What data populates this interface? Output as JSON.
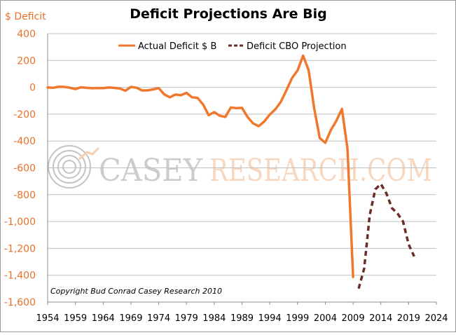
{
  "chart_data": {
    "type": "line",
    "title": "Deficit Projections Are Big",
    "ylabel": "$ Deficit",
    "xlabel": "",
    "xlim": [
      1954,
      2024
    ],
    "ylim": [
      -1600,
      400
    ],
    "x_ticks": [
      "1954",
      "1959",
      "1964",
      "1969",
      "1974",
      "1979",
      "1984",
      "1989",
      "1994",
      "1999",
      "2004",
      "2009",
      "2014",
      "2019",
      "2024"
    ],
    "x_tick_values": [
      1954,
      1959,
      1964,
      1969,
      1974,
      1979,
      1984,
      1989,
      1994,
      1999,
      2004,
      2009,
      2014,
      2019,
      2024
    ],
    "y_ticks": [
      "400",
      "200",
      "0",
      "-200",
      "-400",
      "-600",
      "-800",
      "-1,000",
      "-1,200",
      "-1,400",
      "-1,600"
    ],
    "y_tick_values": [
      400,
      200,
      0,
      -200,
      -400,
      -600,
      -800,
      -1000,
      -1200,
      -1400,
      -1600
    ],
    "grid": "horizontal",
    "legend_position": "top",
    "series": [
      {
        "name": "Actual Deficit $ B",
        "style": "solid",
        "color": "#f0782d",
        "x": [
          1954,
          1955,
          1956,
          1957,
          1958,
          1959,
          1960,
          1961,
          1962,
          1963,
          1964,
          1965,
          1966,
          1967,
          1968,
          1969,
          1970,
          1971,
          1972,
          1973,
          1974,
          1975,
          1976,
          1977,
          1978,
          1979,
          1980,
          1981,
          1982,
          1983,
          1984,
          1985,
          1986,
          1987,
          1988,
          1989,
          1990,
          1991,
          1992,
          1993,
          1994,
          1995,
          1996,
          1997,
          1998,
          1999,
          2000,
          2001,
          2002,
          2003,
          2004,
          2005,
          2006,
          2007,
          2008,
          2009
        ],
        "values": [
          -1,
          -3,
          4,
          3,
          -3,
          -13,
          0,
          -3,
          -7,
          -5,
          -6,
          -1,
          -4,
          -9,
          -25,
          3,
          -3,
          -23,
          -23,
          -15,
          -6,
          -53,
          -74,
          -54,
          -59,
          -41,
          -74,
          -79,
          -128,
          -208,
          -185,
          -212,
          -221,
          -150,
          -155,
          -153,
          -221,
          -269,
          -290,
          -255,
          -203,
          -164,
          -107,
          -22,
          69,
          126,
          236,
          128,
          -158,
          -378,
          -413,
          -318,
          -248,
          -161,
          -459,
          -1413
        ]
      },
      {
        "name": "Deficit CBO Projection",
        "style": "dashed",
        "color": "#6b2e26",
        "x": [
          2010,
          2011,
          2012,
          2013,
          2014,
          2015,
          2016,
          2017,
          2018,
          2019,
          2020
        ],
        "values": [
          -1500,
          -1350,
          -950,
          -760,
          -720,
          -790,
          -900,
          -940,
          -1000,
          -1170,
          -1260
        ]
      }
    ]
  },
  "annotations": {
    "copyright": "Copyright Bud Conrad  Casey Research 2010",
    "watermark": "CASEY RESEARCH.COM"
  },
  "colors": {
    "axis_label": "#e8702a",
    "gridline": "#c0c0c0"
  }
}
